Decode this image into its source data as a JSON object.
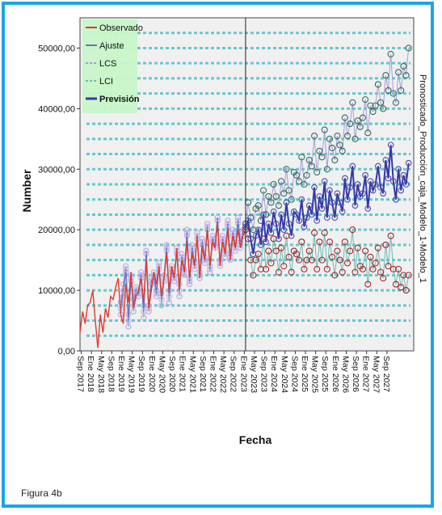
{
  "caption": "Figura 4b",
  "chart_data": {
    "type": "line",
    "title": "Pronosticado_Producción_caja_Modelo_1-Modelo_1",
    "xlabel": "Fecha",
    "ylabel": "Number",
    "ylim": [
      0,
      55000
    ],
    "yticks": [
      "0,00",
      "10000,00",
      "20000,00",
      "30000,00",
      "40000,00",
      "50000,00"
    ],
    "ytick_values": [
      0,
      10000,
      20000,
      30000,
      40000,
      50000
    ],
    "x_tick_labels": [
      "Sep 2017",
      "Ene 2018",
      "May 2018",
      "Sep 2018",
      "Ene 2019",
      "May 2019",
      "Sep 2019",
      "Ene 2020",
      "May 2020",
      "Sep 2020",
      "Ene 2021",
      "May 2021",
      "Sep 2021",
      "Ene 2022",
      "May 2022",
      "Sep 2022",
      "Ene 2023",
      "May 2023",
      "Sep 2023",
      "Ene 2024",
      "May 2024",
      "Sep 2024",
      "Ene 2025",
      "May 2025",
      "Sep 2025",
      "Ene 2026",
      "May 2026",
      "Sep 2026",
      "Ene 2027",
      "May 2027",
      "Sep 2027"
    ],
    "forecast_start": "Ene 2023",
    "legend": {
      "placement": "top-left",
      "items": [
        {
          "label": "Observado",
          "color": "#e03a2f",
          "style": "solid"
        },
        {
          "label": "Ajuste",
          "color": "#6a6fc9",
          "style": "solid"
        },
        {
          "label": "LCS",
          "color": "#a99ad6",
          "style": "dashed"
        },
        {
          "label": "LCI",
          "color": "#6db9b4",
          "style": "dashed"
        },
        {
          "label": "Previsión",
          "color": "#3437a6",
          "style": "solid"
        }
      ]
    },
    "grid": true,
    "series": [
      {
        "name": "Observado",
        "color": "#e03a2f",
        "x": [
          0,
          1,
          2,
          3,
          4,
          5,
          6,
          7,
          8,
          9,
          10,
          11,
          12,
          13,
          14,
          15,
          16,
          17,
          18,
          19,
          20,
          21,
          22,
          23,
          24,
          25,
          26,
          27,
          28,
          29,
          30,
          31,
          32,
          33,
          34,
          35,
          36,
          37,
          38,
          39,
          40,
          41,
          42,
          43,
          44,
          45,
          46,
          47,
          48,
          49,
          50,
          51,
          52,
          53,
          54,
          55,
          56,
          57,
          58,
          59,
          60,
          61,
          62,
          63,
          64,
          65
        ],
        "values": [
          3000,
          6500,
          4500,
          7500,
          8000,
          10000,
          5000,
          500,
          6000,
          3000,
          7000,
          5500,
          9000,
          8500,
          10500,
          12000,
          6000,
          4500,
          11000,
          8000,
          13000,
          7000,
          9000,
          10000,
          12000,
          8000,
          15000,
          7000,
          10000,
          13000,
          11000,
          14000,
          9000,
          12000,
          16000,
          10000,
          14000,
          12000,
          17000,
          10000,
          15000,
          13000,
          18000,
          12000,
          16000,
          14000,
          19000,
          12000,
          17000,
          15000,
          20000,
          14000,
          18000,
          17000,
          21000,
          14000,
          18000,
          16000,
          20000,
          15000,
          19000,
          17000,
          20000,
          17000,
          19000,
          20000
        ]
      },
      {
        "name": "Ajuste",
        "color": "#6a6fc9",
        "x": [
          16,
          17,
          18,
          19,
          20,
          21,
          22,
          23,
          24,
          25,
          26,
          27,
          28,
          29,
          30,
          31,
          32,
          33,
          34,
          35,
          36,
          37,
          38,
          39,
          40,
          41,
          42,
          43,
          44,
          45,
          46,
          47,
          48,
          49,
          50,
          51,
          52,
          53,
          54,
          55,
          56,
          57,
          58,
          59,
          60,
          61,
          62,
          63,
          64,
          65
        ],
        "values": [
          7000,
          10000,
          13500,
          5000,
          12000,
          7500,
          10000,
          9500,
          12500,
          6500,
          16500,
          7000,
          11500,
          12500,
          9500,
          14000,
          8500,
          12000,
          17000,
          9000,
          13500,
          12000,
          16500,
          10000,
          15500,
          13000,
          19500,
          11500,
          17000,
          14000,
          19000,
          12500,
          18000,
          15000,
          20500,
          13500,
          18500,
          17500,
          22000,
          14500,
          18500,
          16000,
          21000,
          15500,
          19500,
          17000,
          21500,
          17500,
          19500,
          20500
        ]
      },
      {
        "name": "LCS",
        "color": "#a99ad6",
        "x": [
          16,
          17,
          18,
          19,
          20,
          21,
          22,
          23,
          24,
          25,
          26,
          27,
          28,
          29,
          30,
          31,
          32,
          33,
          34,
          35,
          36,
          37,
          38,
          39,
          40,
          41,
          42,
          43,
          44,
          45,
          46,
          47,
          48,
          49,
          50,
          51,
          52,
          53,
          54,
          55,
          56,
          57,
          58,
          59,
          60,
          61,
          62,
          63,
          64,
          65
        ],
        "values": [
          8000,
          11000,
          14000,
          6000,
          12500,
          8500,
          10500,
          10000,
          13000,
          7500,
          16500,
          7500,
          12000,
          13000,
          10000,
          14500,
          9500,
          12500,
          17500,
          10000,
          14000,
          12500,
          17000,
          11000,
          16000,
          13500,
          20000,
          12000,
          17500,
          14500,
          19500,
          13000,
          18500,
          15500,
          21000,
          14000,
          19000,
          18000,
          22000,
          15000,
          19000,
          16500,
          21500,
          16000,
          20000,
          17500,
          22000,
          18000,
          20000,
          21000
        ]
      },
      {
        "name": "LCI",
        "color": "#6db9b4",
        "x": [
          16,
          17,
          18,
          19,
          20,
          21,
          22,
          23,
          24,
          25,
          26,
          27,
          28,
          29,
          30,
          31,
          32,
          33,
          34,
          35,
          36,
          37,
          38,
          39,
          40,
          41,
          42,
          43,
          44,
          45,
          46,
          47,
          48,
          49,
          50,
          51,
          52,
          53,
          54,
          55,
          56,
          57,
          58,
          59,
          60,
          61,
          62,
          63,
          64,
          65
        ],
        "values": [
          6000,
          9000,
          13000,
          4000,
          11500,
          6500,
          9500,
          9000,
          12000,
          5500,
          16000,
          6500,
          11000,
          12000,
          9000,
          13500,
          7500,
          11500,
          16500,
          8000,
          13000,
          11500,
          16000,
          9000,
          15000,
          12500,
          19000,
          11000,
          16500,
          13500,
          18500,
          12000,
          17500,
          14500,
          20000,
          13000,
          18000,
          17000,
          21500,
          14000,
          18000,
          15500,
          20500,
          15000,
          19000,
          16500,
          21000,
          17000,
          19000,
          20000
        ]
      },
      {
        "name": "Previsión",
        "color": "#3437a6",
        "x": [
          65,
          66,
          67,
          68,
          69,
          70,
          71,
          72,
          73,
          74,
          75,
          76,
          77,
          78,
          79,
          80,
          81,
          82,
          83,
          84,
          85,
          86,
          87,
          88,
          89,
          90,
          91,
          92,
          93,
          94,
          95,
          96,
          97,
          98,
          99,
          100,
          101,
          102,
          103,
          104,
          105,
          106,
          107,
          108,
          109,
          110,
          111,
          112,
          113,
          114,
          115,
          116,
          117,
          118,
          119,
          120,
          121,
          122,
          123,
          124,
          125,
          126,
          127,
          128,
          129
        ],
        "values": [
          20500,
          21500,
          18500,
          16000,
          19000,
          20000,
          17500,
          22500,
          18000,
          21000,
          19500,
          23000,
          21000,
          18500,
          22500,
          20000,
          24500,
          21000,
          19000,
          23000,
          22500,
          21500,
          25000,
          20500,
          22000,
          24000,
          22500,
          27000,
          21500,
          25500,
          23500,
          28000,
          22000,
          26500,
          24500,
          22000,
          26000,
          24500,
          23000,
          28500,
          25000,
          27000,
          30500,
          24000,
          27500,
          25500,
          26000,
          29000,
          23500,
          28000,
          26500,
          27500,
          30500,
          27000,
          26000,
          31500,
          28500,
          34000,
          28000,
          25000,
          30000,
          26500,
          29000,
          27500,
          31000
        ]
      },
      {
        "name": "LCS",
        "color": "#a99ad6",
        "x": [
          65,
          66,
          67,
          68,
          69,
          70,
          71,
          72,
          73,
          74,
          75,
          76,
          77,
          78,
          79,
          80,
          81,
          82,
          83,
          84,
          85,
          86,
          87,
          88,
          89,
          90,
          91,
          92,
          93,
          94,
          95,
          96,
          97,
          98,
          99,
          100,
          101,
          102,
          103,
          104,
          105,
          106,
          107,
          108,
          109,
          110,
          111,
          112,
          113,
          114,
          115,
          116,
          117,
          118,
          119,
          120,
          121,
          122,
          123,
          124,
          125,
          126,
          127,
          128,
          129
        ],
        "values": [
          21000,
          24500,
          22000,
          20000,
          23500,
          24000,
          21500,
          26500,
          22500,
          25500,
          24500,
          27500,
          25500,
          24000,
          28000,
          26000,
          30000,
          26500,
          25000,
          29500,
          29000,
          28000,
          32000,
          27500,
          29000,
          31500,
          30500,
          35500,
          29500,
          33000,
          32000,
          36500,
          30000,
          35000,
          33500,
          31500,
          35500,
          34000,
          33000,
          38500,
          35500,
          37500,
          41000,
          35000,
          38000,
          37000,
          38500,
          41500,
          36000,
          40500,
          39500,
          40500,
          44000,
          41000,
          40000,
          45500,
          43000,
          49000,
          42500,
          41000,
          46000,
          43000,
          47000,
          45500,
          50000
        ]
      },
      {
        "name": "LCI",
        "color": "#6db9b4",
        "x": [
          65,
          66,
          67,
          68,
          69,
          70,
          71,
          72,
          73,
          74,
          75,
          76,
          77,
          78,
          79,
          80,
          81,
          82,
          83,
          84,
          85,
          86,
          87,
          88,
          89,
          90,
          91,
          92,
          93,
          94,
          95,
          96,
          97,
          98,
          99,
          100,
          101,
          102,
          103,
          104,
          105,
          106,
          107,
          108,
          109,
          110,
          111,
          112,
          113,
          114,
          115,
          116,
          117,
          118,
          119,
          120,
          121,
          122,
          123,
          124,
          125,
          126,
          127,
          128,
          129
        ],
        "values": [
          20000,
          18500,
          15000,
          12500,
          15000,
          16000,
          13500,
          18500,
          13500,
          16500,
          14500,
          18500,
          16500,
          13000,
          17000,
          14000,
          19000,
          15500,
          13000,
          16500,
          16000,
          15000,
          18000,
          13500,
          15000,
          16500,
          15000,
          19500,
          13500,
          18000,
          15000,
          19500,
          13500,
          18000,
          15500,
          12500,
          16500,
          15000,
          13000,
          18000,
          14500,
          16500,
          20000,
          13000,
          17000,
          14000,
          13500,
          16500,
          11000,
          15500,
          13500,
          14500,
          17000,
          13000,
          12000,
          17500,
          14000,
          19000,
          13500,
          11000,
          13500,
          10500,
          12500,
          10000,
          12500
        ]
      }
    ]
  }
}
